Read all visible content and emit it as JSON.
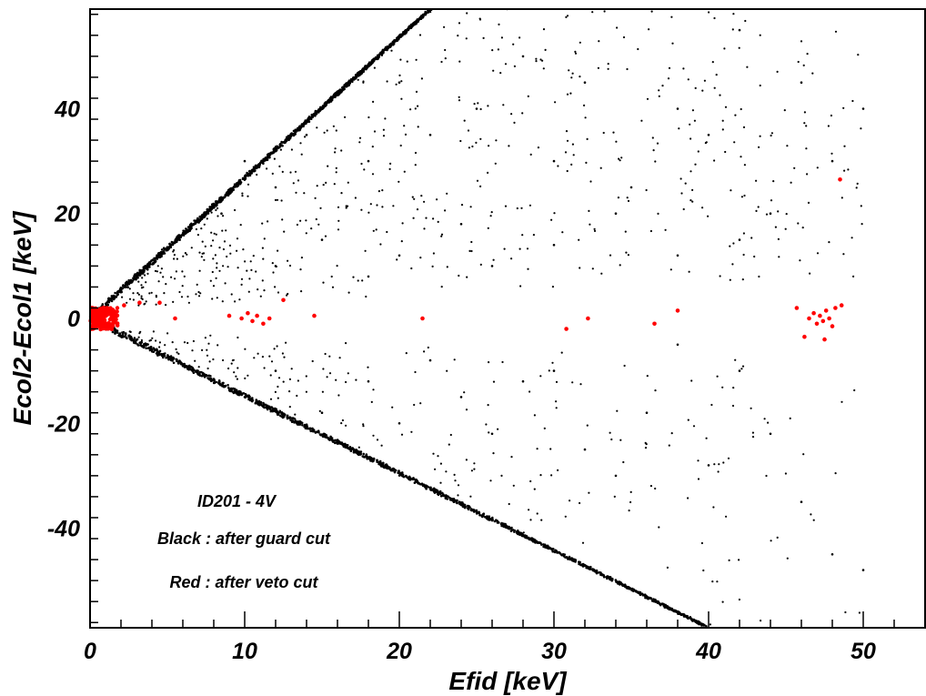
{
  "chart_data": {
    "type": "scatter",
    "xlabel": "Efid [keV]",
    "ylabel": "Ecol2-Ecol1 [keV]",
    "xlim": [
      0,
      54
    ],
    "ylim": [
      -59,
      59
    ],
    "x_ticks": [
      0,
      10,
      20,
      30,
      40,
      50
    ],
    "y_ticks": [
      -40,
      -20,
      0,
      20,
      40
    ],
    "annotations": [
      "ID201 - 4V",
      "Black : after guard cut",
      "Red : after veto cut"
    ],
    "grid": false,
    "series": [
      {
        "color": "#000000",
        "description_bands": [
          {
            "from": [
              0,
              0
            ],
            "to": [
              22,
              59
            ],
            "kind": "upper dense band"
          },
          {
            "from": [
              0,
              0
            ],
            "to": [
              40,
              -59
            ],
            "kind": "lower dense band"
          }
        ],
        "values": [
          [
            8.5,
            20
          ],
          [
            10,
            30
          ],
          [
            12,
            25
          ],
          [
            14,
            35
          ],
          [
            15,
            40
          ],
          [
            18,
            30
          ],
          [
            20,
            45
          ],
          [
            22,
            35
          ],
          [
            25,
            40
          ],
          [
            28,
            50
          ],
          [
            30,
            30
          ],
          [
            32,
            45
          ],
          [
            35,
            25
          ],
          [
            38,
            40
          ],
          [
            40,
            35
          ],
          [
            42,
            55
          ],
          [
            44,
            20
          ],
          [
            46,
            45
          ],
          [
            48,
            30
          ],
          [
            50,
            40
          ],
          [
            12,
            10
          ],
          [
            15,
            15
          ],
          [
            18,
            8
          ],
          [
            20,
            12
          ],
          [
            24,
            18
          ],
          [
            26,
            10
          ],
          [
            30,
            14
          ],
          [
            34,
            20
          ],
          [
            38,
            12
          ],
          [
            42,
            15
          ],
          [
            10,
            -15
          ],
          [
            12,
            -10
          ],
          [
            15,
            -18
          ],
          [
            18,
            -12
          ],
          [
            20,
            -20
          ],
          [
            24,
            -15
          ],
          [
            28,
            -12
          ],
          [
            32,
            -25
          ],
          [
            36,
            -18
          ],
          [
            40,
            -28
          ],
          [
            42,
            -10
          ],
          [
            44,
            -22
          ],
          [
            46,
            -35
          ],
          [
            48,
            -45
          ],
          [
            50,
            -48
          ],
          [
            22,
            -8
          ],
          [
            26,
            -22
          ],
          [
            30,
            -10
          ],
          [
            34,
            -30
          ],
          [
            38,
            -5
          ]
        ]
      },
      {
        "color": "#ff0000",
        "values": [
          [
            0.2,
            0.5
          ],
          [
            0.4,
            -0.5
          ],
          [
            0.6,
            1.0
          ],
          [
            0.8,
            0.0
          ],
          [
            1.0,
            -1.0
          ],
          [
            1.2,
            1.5
          ],
          [
            1.4,
            0.3
          ],
          [
            0.3,
            1.8
          ],
          [
            0.7,
            -1.5
          ],
          [
            1.1,
            2.0
          ],
          [
            1.5,
            -0.8
          ],
          [
            0.5,
            0.0
          ],
          [
            0.9,
            0.9
          ],
          [
            1.3,
            -0.2
          ],
          [
            2.2,
            2.5
          ],
          [
            3.2,
            3.0
          ],
          [
            4.5,
            3.0
          ],
          [
            5.5,
            0.0
          ],
          [
            9.0,
            0.5
          ],
          [
            9.8,
            0.0
          ],
          [
            10.2,
            1.0
          ],
          [
            10.5,
            -0.5
          ],
          [
            10.8,
            0.5
          ],
          [
            11.2,
            -1.0
          ],
          [
            11.6,
            0.0
          ],
          [
            12.5,
            3.5
          ],
          [
            14.5,
            0.5
          ],
          [
            21.5,
            0.0
          ],
          [
            30.8,
            -2.0
          ],
          [
            32.2,
            0.0
          ],
          [
            36.5,
            -1.0
          ],
          [
            38.0,
            1.5
          ],
          [
            45.7,
            2.0
          ],
          [
            46.5,
            0.0
          ],
          [
            46.8,
            1.0
          ],
          [
            47.0,
            -1.0
          ],
          [
            47.2,
            0.5
          ],
          [
            47.4,
            -0.5
          ],
          [
            47.6,
            1.5
          ],
          [
            47.8,
            0.0
          ],
          [
            48.0,
            -1.5
          ],
          [
            48.2,
            2.0
          ],
          [
            48.6,
            2.5
          ],
          [
            46.2,
            -3.5
          ],
          [
            47.5,
            -4.0
          ],
          [
            48.5,
            26.5
          ]
        ]
      }
    ]
  }
}
